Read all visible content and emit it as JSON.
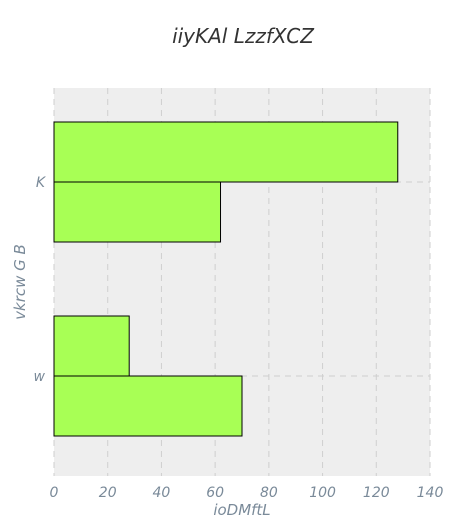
{
  "chart_data": {
    "type": "bar",
    "orientation": "horizontal",
    "title": "iiyKAl LzzfXCZ",
    "xlabel": "ioDMftL",
    "ylabel": "vkrcw G B",
    "categories": [
      "K",
      "w"
    ],
    "series": [
      {
        "values": [
          128,
          28
        ]
      },
      {
        "values": [
          62,
          70
        ]
      }
    ],
    "xlim": [
      0,
      140
    ],
    "xticks": [
      "0",
      "20",
      "40",
      "60",
      "80",
      "100",
      "120",
      "140"
    ],
    "grid": true,
    "legend": "none",
    "colors": {
      "bar": "#a8ff55",
      "plot_bg": "#eeeeee",
      "grid": "#cfcfcf",
      "tick_text": "#7a8a99",
      "title_text": "#333333"
    }
  }
}
